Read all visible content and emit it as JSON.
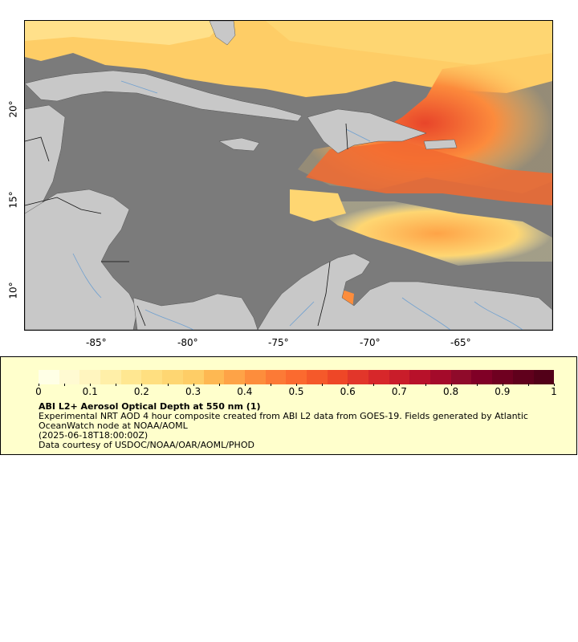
{
  "map": {
    "x_ticks": [
      "-85°",
      "-80°",
      "-75°",
      "-70°",
      "-65°"
    ],
    "y_ticks": [
      "20°",
      "15°",
      "10°"
    ],
    "colors": {
      "ocean": "#7b7b7b",
      "land": "#c8c8c8",
      "rivers": "#6fa0d0",
      "borders": "#000000"
    }
  },
  "colorbar": {
    "tick_labels": [
      "0",
      "0.1",
      "0.2",
      "0.3",
      "0.4",
      "0.5",
      "0.6",
      "0.7",
      "0.8",
      "0.9",
      "1"
    ],
    "colors": [
      "#ffffe6",
      "#fffad2",
      "#fff5bf",
      "#ffefa8",
      "#ffe791",
      "#ffdf80",
      "#fed672",
      "#fecd66",
      "#feb852",
      "#fea347",
      "#fd8d3c",
      "#fc7a36",
      "#fb6a2f",
      "#f5592a",
      "#ee4727",
      "#e2362a",
      "#d7272a",
      "#c91d2a",
      "#b8112a",
      "#a40a2a",
      "#8f0a2a",
      "#800026",
      "#6f0020",
      "#60001c",
      "#520018"
    ]
  },
  "legend": {
    "title": "ABI L2+ Aerosol Optical Depth at 550 nm (1)",
    "line1": "Experimental NRT AOD 4 hour composite created from ABI L2 data from GOES-19. Fields generated by Atlantic OceanWatch node at NOAA/AOML",
    "line2": "(2025-06-18T18:00:00Z)",
    "line3": "Data courtesy of USDOC/NOAA/OAR/AOML/PHOD"
  }
}
